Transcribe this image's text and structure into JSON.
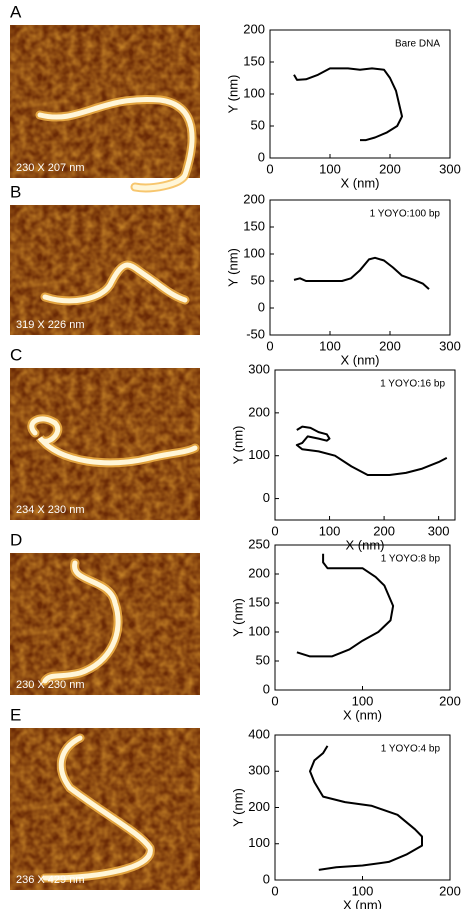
{
  "panels": [
    {
      "letter": "A",
      "image_caption": "230 X 207 nm"
    },
    {
      "letter": "B",
      "image_caption": "319 X 226 nm"
    },
    {
      "letter": "C",
      "image_caption": "234 X 230 nm"
    },
    {
      "letter": "D",
      "image_caption": "230 X 230 nm"
    },
    {
      "letter": "E",
      "image_caption": "236 X 429 nm"
    }
  ],
  "chart_data": [
    {
      "type": "line",
      "annotation": "Bare DNA",
      "x_label": "X (nm)",
      "y_label": "Y (nm)",
      "xlim": [
        0,
        300
      ],
      "ylim": [
        0,
        200
      ],
      "xticks": [
        0,
        100,
        200,
        300
      ],
      "yticks": [
        0,
        50,
        100,
        150,
        200
      ],
      "series": [
        {
          "color": "#000000",
          "x": [
            40,
            45,
            60,
            80,
            100,
            130,
            150,
            170,
            190,
            200,
            210,
            215,
            220,
            212,
            195,
            175,
            160,
            150
          ],
          "values": [
            130,
            122,
            123,
            130,
            140,
            140,
            138,
            140,
            138,
            125,
            105,
            85,
            65,
            50,
            40,
            32,
            28,
            28
          ]
        }
      ]
    },
    {
      "type": "line",
      "annotation": "1 YOYO:100 bp",
      "x_label": "X (nm)",
      "y_label": "Y (nm)",
      "xlim": [
        0,
        300
      ],
      "ylim": [
        -50,
        200
      ],
      "xticks": [
        0,
        100,
        200,
        300
      ],
      "yticks": [
        -50,
        0,
        50,
        100,
        150,
        200
      ],
      "series": [
        {
          "color": "#000000",
          "x": [
            40,
            50,
            60,
            100,
            120,
            135,
            150,
            165,
            175,
            190,
            205,
            220,
            240,
            255,
            265
          ],
          "values": [
            52,
            55,
            50,
            50,
            50,
            55,
            70,
            90,
            93,
            88,
            75,
            60,
            52,
            45,
            35
          ]
        }
      ]
    },
    {
      "type": "line",
      "annotation": "1 YOYO:16 bp",
      "x_label": "X (nm)",
      "y_label": "Y (nm)",
      "xlim": [
        0,
        330
      ],
      "ylim": [
        -50,
        300
      ],
      "xticks": [
        0,
        100,
        200,
        300
      ],
      "yticks": [
        0,
        100,
        200,
        300
      ],
      "series": [
        {
          "color": "#000000",
          "x": [
            40,
            50,
            65,
            80,
            95,
            100,
            95,
            80,
            60,
            50,
            40,
            50,
            80,
            110,
            140,
            170,
            210,
            240,
            270,
            300,
            315
          ],
          "values": [
            160,
            168,
            165,
            155,
            150,
            140,
            135,
            140,
            145,
            130,
            125,
            115,
            110,
            100,
            75,
            55,
            55,
            60,
            70,
            85,
            95
          ]
        }
      ]
    },
    {
      "type": "line",
      "annotation": "1 YOYO:8 bp",
      "x_label": "X (nm)",
      "y_label": "Y (nm)",
      "xlim": [
        0,
        200
      ],
      "ylim": [
        0,
        250
      ],
      "xticks": [
        0,
        100,
        200
      ],
      "yticks": [
        0,
        50,
        100,
        150,
        200,
        250
      ],
      "series": [
        {
          "color": "#000000",
          "x": [
            55,
            55,
            60,
            100,
            115,
            125,
            135,
            132,
            118,
            100,
            85,
            65,
            40,
            25
          ],
          "values": [
            235,
            220,
            210,
            210,
            195,
            180,
            145,
            120,
            100,
            85,
            70,
            58,
            58,
            65
          ]
        }
      ]
    },
    {
      "type": "line",
      "annotation": "1 YOYO:4 bp",
      "x_label": "X (nm)",
      "y_label": "Y (nm)",
      "xlim": [
        0,
        200
      ],
      "ylim": [
        0,
        400
      ],
      "xticks": [
        0,
        100,
        200
      ],
      "yticks": [
        0,
        100,
        200,
        300,
        400
      ],
      "series": [
        {
          "color": "#000000",
          "x": [
            60,
            55,
            45,
            40,
            45,
            55,
            80,
            110,
            140,
            160,
            168,
            168,
            150,
            130,
            100,
            70,
            50
          ],
          "values": [
            370,
            350,
            330,
            300,
            270,
            230,
            215,
            205,
            180,
            140,
            120,
            95,
            70,
            50,
            40,
            35,
            28
          ]
        }
      ]
    }
  ]
}
